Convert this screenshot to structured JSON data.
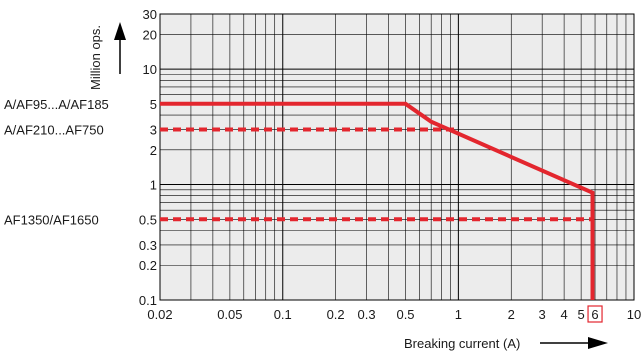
{
  "chart_data": {
    "type": "line",
    "title": "",
    "xlabel": "Breaking current (A)",
    "ylabel": "Million ops.",
    "xscale": "log",
    "yscale": "log",
    "xlim": [
      0.02,
      10
    ],
    "ylim": [
      0.1,
      30
    ],
    "grid": true,
    "background_color": "#ececec",
    "line_color": "#e3262e",
    "x_ticks": [
      {
        "value": 0.02,
        "label": "0.02"
      },
      {
        "value": 0.05,
        "label": "0.05"
      },
      {
        "value": 0.1,
        "label": "0.1"
      },
      {
        "value": 0.2,
        "label": "0.2"
      },
      {
        "value": 0.3,
        "label": "0.3"
      },
      {
        "value": 0.5,
        "label": "0.5"
      },
      {
        "value": 1,
        "label": "1"
      },
      {
        "value": 2,
        "label": "2"
      },
      {
        "value": 3,
        "label": "3"
      },
      {
        "value": 4,
        "label": "4"
      },
      {
        "value": 5,
        "label": "5"
      },
      {
        "value": 6,
        "label": "6",
        "highlight": true
      },
      {
        "value": 10,
        "label": "10"
      }
    ],
    "y_ticks": [
      {
        "value": 0.1,
        "label": "0.1"
      },
      {
        "value": 0.2,
        "label": "0.2"
      },
      {
        "value": 0.3,
        "label": "0.3"
      },
      {
        "value": 0.5,
        "label": "0.5"
      },
      {
        "value": 1,
        "label": "1"
      },
      {
        "value": 2,
        "label": "2"
      },
      {
        "value": 3,
        "label": "3"
      },
      {
        "value": 5,
        "label": "5"
      },
      {
        "value": 10,
        "label": "10"
      },
      {
        "value": 20,
        "label": "20"
      },
      {
        "value": 30,
        "label": "30"
      }
    ],
    "series": [
      {
        "name": "A/AF95...A/AF185",
        "style": "solid",
        "label_y": 5,
        "points": [
          {
            "x": 0.02,
            "y": 5
          },
          {
            "x": 0.5,
            "y": 5
          },
          {
            "x": 0.7,
            "y": 3.5
          },
          {
            "x": 5.8,
            "y": 0.85
          },
          {
            "x": 5.8,
            "y": 0.1
          }
        ]
      },
      {
        "name": "A/AF210...AF750",
        "style": "dashed",
        "label_y": 3,
        "points": [
          {
            "x": 0.02,
            "y": 3
          },
          {
            "x": 1,
            "y": 3
          }
        ]
      },
      {
        "name": "AF1350/AF1650",
        "style": "dashed",
        "label_y": 0.5,
        "points": [
          {
            "x": 0.02,
            "y": 0.5
          },
          {
            "x": 5.8,
            "y": 0.5
          }
        ]
      }
    ]
  }
}
